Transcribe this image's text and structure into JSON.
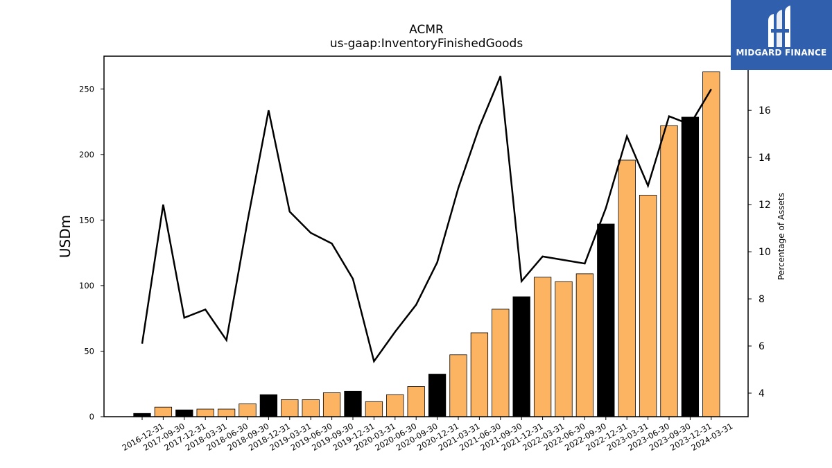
{
  "chart_data": {
    "type": "bar",
    "title": "ACMR",
    "subtitle": "us-gaap:InventoryFinishedGoods",
    "ylabel": "USDm",
    "y2label": "Percentage of Assets",
    "ylim": [
      0,
      275
    ],
    "y2lim": [
      3,
      18.3
    ],
    "yticks": [
      0,
      50,
      100,
      150,
      200,
      250
    ],
    "y2ticks": [
      4,
      6,
      8,
      10,
      12,
      14,
      16
    ],
    "categories": [
      "2016-12-31",
      "2017-09-30",
      "2017-12-31",
      "2018-03-31",
      "2018-06-30",
      "2018-09-30",
      "2018-12-31",
      "2019-03-31",
      "2019-06-30",
      "2019-09-30",
      "2019-12-31",
      "2020-03-31",
      "2020-06-30",
      "2020-09-30",
      "2020-12-31",
      "2021-03-31",
      "2021-06-30",
      "2021-09-30",
      "2021-12-31",
      "2022-03-31",
      "2022-06-30",
      "2022-09-30",
      "2022-12-31",
      "2023-03-31",
      "2023-06-30",
      "2023-09-30",
      "2023-12-31",
      "2024-03-31"
    ],
    "series": [
      {
        "type": "bar",
        "values": [
          2.5,
          7.3,
          5.2,
          5.8,
          5.8,
          9.8,
          16.8,
          13.0,
          13.0,
          18.3,
          19.4,
          11.5,
          16.8,
          23.0,
          32.5,
          47.2,
          64.0,
          82.0,
          91.5,
          106.4,
          103.0,
          109.0,
          147.0,
          195.7,
          169.0,
          222.0,
          228.5,
          263.0
        ],
        "colors_by_quarter": {
          "year_end": "#000000",
          "other": "#fdb462"
        }
      },
      {
        "type": "line",
        "axis": "right",
        "values": [
          6.1,
          12.0,
          7.2,
          7.55,
          6.25,
          11.3,
          16.0,
          11.7,
          10.8,
          10.35,
          8.85,
          5.35,
          6.6,
          7.75,
          9.55,
          12.7,
          15.3,
          17.45,
          8.75,
          9.8,
          9.65,
          9.5,
          11.85,
          14.9,
          12.8,
          15.75,
          15.4,
          16.9
        ],
        "color": "#000000"
      }
    ]
  },
  "logo": {
    "text": "MIDGARD FINANCE",
    "background": "#2f5fad"
  }
}
